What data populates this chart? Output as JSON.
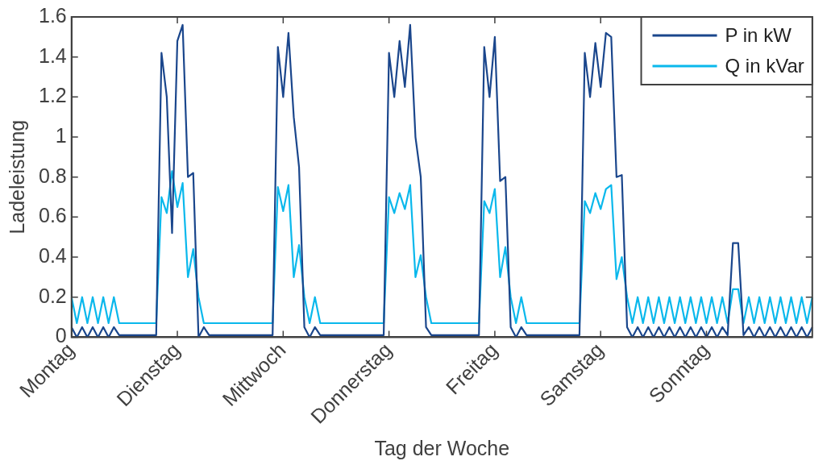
{
  "chart_data": {
    "type": "line",
    "xlabel": "Tag der Woche",
    "ylabel": "Ladeleistung",
    "categories": [
      "Montag",
      null,
      null,
      null,
      null,
      null,
      null,
      null,
      null,
      null,
      null,
      null,
      null,
      null,
      null,
      null,
      null,
      null,
      null,
      null,
      "Dienstag",
      null,
      null,
      null,
      null,
      null,
      null,
      null,
      null,
      null,
      null,
      null,
      null,
      null,
      null,
      null,
      null,
      null,
      null,
      null,
      "Mittwoch",
      null,
      null,
      null,
      null,
      null,
      null,
      null,
      null,
      null,
      null,
      null,
      null,
      null,
      null,
      null,
      null,
      null,
      null,
      null,
      "Donnerstag",
      null,
      null,
      null,
      null,
      null,
      null,
      null,
      null,
      null,
      null,
      null,
      null,
      null,
      null,
      null,
      null,
      null,
      null,
      null,
      "Freitag",
      null,
      null,
      null,
      null,
      null,
      null,
      null,
      null,
      null,
      null,
      null,
      null,
      null,
      null,
      null,
      null,
      null,
      null,
      null,
      "Samstag",
      null,
      null,
      null,
      null,
      null,
      null,
      null,
      null,
      null,
      null,
      null,
      null,
      null,
      null,
      null,
      null,
      null,
      null,
      null,
      "Sonntag",
      null,
      null,
      null,
      null,
      null,
      null,
      null,
      null,
      null,
      null,
      null,
      null,
      null,
      null,
      null,
      null,
      null,
      null,
      null,
      null
    ],
    "ylim": [
      0,
      1.6
    ],
    "yticks": [
      0,
      0.2,
      0.4,
      0.6,
      0.8,
      1,
      1.2,
      1.4,
      1.6
    ],
    "legend": "top right",
    "marker": "none",
    "line_style": "solid",
    "series": [
      {
        "name": "P in kW",
        "color": "#1a468c",
        "values": [
          0.05,
          0,
          0.05,
          0,
          0.05,
          0,
          0.05,
          0,
          0.05,
          0.01,
          0.01,
          0.01,
          0.01,
          0.01,
          0.01,
          0.01,
          0.01,
          1.42,
          1.2,
          0.52,
          1.48,
          1.56,
          0.8,
          0.82,
          0,
          0.05,
          0.01,
          0.01,
          0.01,
          0.01,
          0.01,
          0.01,
          0.01,
          0.01,
          0.01,
          0.01,
          0.01,
          0.01,
          0.01,
          1.45,
          1.2,
          1.52,
          1.1,
          0.85,
          0.05,
          0,
          0.05,
          0.01,
          0.01,
          0.01,
          0.01,
          0.01,
          0.01,
          0.01,
          0.01,
          0.01,
          0.01,
          0.01,
          0.01,
          0.01,
          1.42,
          1.2,
          1.48,
          1.25,
          1.56,
          1.0,
          0.8,
          0.05,
          0.01,
          0.01,
          0.01,
          0.01,
          0.01,
          0.01,
          0.01,
          0.01,
          0.01,
          0.01,
          1.45,
          1.2,
          1.5,
          0.78,
          0.8,
          0.05,
          0,
          0.05,
          0.01,
          0.01,
          0.01,
          0.01,
          0.01,
          0.01,
          0.01,
          0.01,
          0.01,
          0.01,
          0.01,
          1.42,
          1.2,
          1.47,
          1.25,
          1.52,
          1.5,
          0.8,
          0.81,
          0.05,
          0,
          0.05,
          0,
          0.05,
          0,
          0.05,
          0,
          0.05,
          0,
          0.05,
          0,
          0.05,
          0,
          0.05,
          0,
          0.05,
          0,
          0.05,
          0.01,
          0.47,
          0.47,
          0.01,
          0.05,
          0,
          0.05,
          0,
          0.05,
          0,
          0.05,
          0,
          0.05,
          0,
          0.05,
          0,
          0.05
        ]
      },
      {
        "name": "Q in kVar",
        "color": "#0ab8ec",
        "values": [
          0.2,
          0.07,
          0.2,
          0.07,
          0.2,
          0.07,
          0.2,
          0.07,
          0.2,
          0.07,
          0.07,
          0.07,
          0.07,
          0.07,
          0.07,
          0.07,
          0.07,
          0.7,
          0.62,
          0.83,
          0.65,
          0.77,
          0.3,
          0.44,
          0.2,
          0.07,
          0.07,
          0.07,
          0.07,
          0.07,
          0.07,
          0.07,
          0.07,
          0.07,
          0.07,
          0.07,
          0.07,
          0.07,
          0.07,
          0.75,
          0.63,
          0.76,
          0.3,
          0.46,
          0.2,
          0.07,
          0.2,
          0.07,
          0.07,
          0.07,
          0.07,
          0.07,
          0.07,
          0.07,
          0.07,
          0.07,
          0.07,
          0.07,
          0.07,
          0.07,
          0.7,
          0.62,
          0.72,
          0.64,
          0.76,
          0.3,
          0.41,
          0.2,
          0.07,
          0.07,
          0.07,
          0.07,
          0.07,
          0.07,
          0.07,
          0.07,
          0.07,
          0.07,
          0.68,
          0.62,
          0.74,
          0.3,
          0.45,
          0.2,
          0.07,
          0.2,
          0.07,
          0.07,
          0.07,
          0.07,
          0.07,
          0.07,
          0.07,
          0.07,
          0.07,
          0.07,
          0.07,
          0.68,
          0.62,
          0.72,
          0.64,
          0.74,
          0.76,
          0.29,
          0.4,
          0.2,
          0.07,
          0.2,
          0.07,
          0.2,
          0.07,
          0.2,
          0.07,
          0.2,
          0.07,
          0.2,
          0.07,
          0.2,
          0.07,
          0.2,
          0.07,
          0.2,
          0.07,
          0.2,
          0.07,
          0.24,
          0.24,
          0.07,
          0.2,
          0.07,
          0.2,
          0.07,
          0.2,
          0.07,
          0.2,
          0.07,
          0.2,
          0.07,
          0.2,
          0.07,
          0.2
        ]
      }
    ]
  }
}
